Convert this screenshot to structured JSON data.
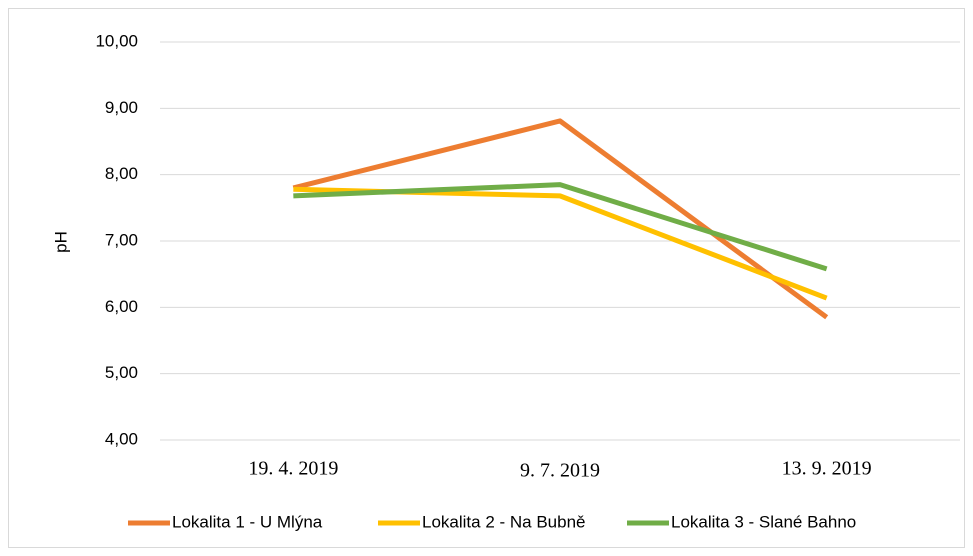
{
  "chart_data": {
    "type": "line",
    "y_label": "pH",
    "categories": [
      "19. 4. 2019",
      "9. 7. 2019",
      "13. 9. 2019"
    ],
    "series": [
      {
        "name": "Lokalita 1 - U Mlýna",
        "color": "#ed7d31",
        "values": [
          7.8,
          8.81,
          5.85
        ]
      },
      {
        "name": "Lokalita 2 - Na Bubně",
        "color": "#ffc000",
        "values": [
          7.78,
          7.68,
          6.14
        ]
      },
      {
        "name": "Lokalita 3 - Slané Bahno",
        "color": "#70ad47",
        "values": [
          7.68,
          7.85,
          6.58
        ]
      }
    ],
    "ylim": [
      4,
      10
    ],
    "yticks": [
      {
        "value": 4,
        "label": "4,00"
      },
      {
        "value": 5,
        "label": "5,00"
      },
      {
        "value": 6,
        "label": "6,00"
      },
      {
        "value": 7,
        "label": "7,00"
      },
      {
        "value": 8,
        "label": "8,00"
      },
      {
        "value": 9,
        "label": "9,00"
      },
      {
        "value": 10,
        "label": "10,00"
      }
    ],
    "grid": true,
    "legend": "bottom"
  }
}
